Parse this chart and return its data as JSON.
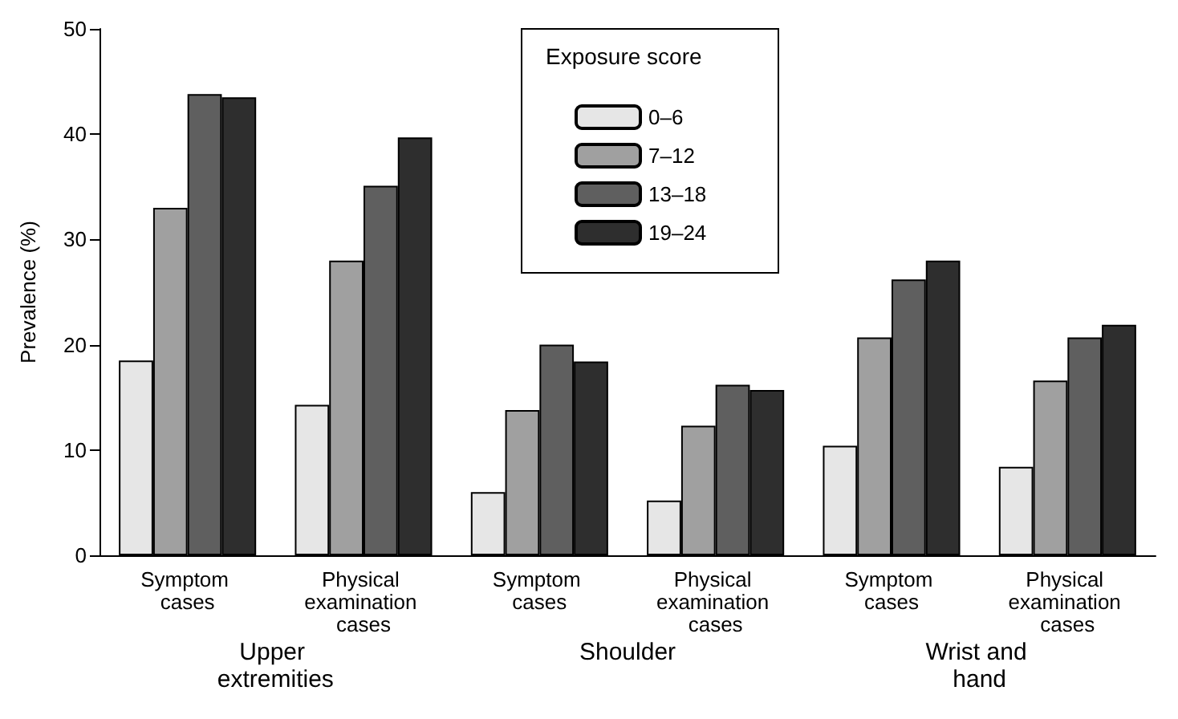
{
  "chart_data": {
    "type": "bar",
    "ylabel": "Prevalence (%)",
    "legend_title": "Exposure score",
    "categories": [
      "Symptom cases",
      "Physical examination cases",
      "Symptom cases",
      "Physical examination cases",
      "Symptom cases",
      "Physical examination cases"
    ],
    "series": [
      {
        "name": "0–6",
        "color": "#e6e6e6",
        "values": [
          18.5,
          14.3,
          6,
          5.2,
          10.4,
          8.4
        ]
      },
      {
        "name": "7–12",
        "color": "#a0a0a0",
        "values": [
          33,
          28,
          13.8,
          12.3,
          20.7,
          16.6
        ]
      },
      {
        "name": "13–18",
        "color": "#5f5f5f",
        "values": [
          43.8,
          35.1,
          20,
          16.2,
          26.2,
          20.7
        ]
      },
      {
        "name": "19–24",
        "color": "#2e2e2e",
        "values": [
          43.5,
          39.7,
          18.4,
          15.7,
          28,
          21.9
        ]
      }
    ],
    "annotations": [
      "Upper extremities",
      "Shoulder",
      "Wrist and hand"
    ],
    "ylim": [
      0,
      50
    ],
    "yticks": [
      0,
      10,
      20,
      30,
      40,
      50
    ],
    "grid": false,
    "legend": "top"
  }
}
